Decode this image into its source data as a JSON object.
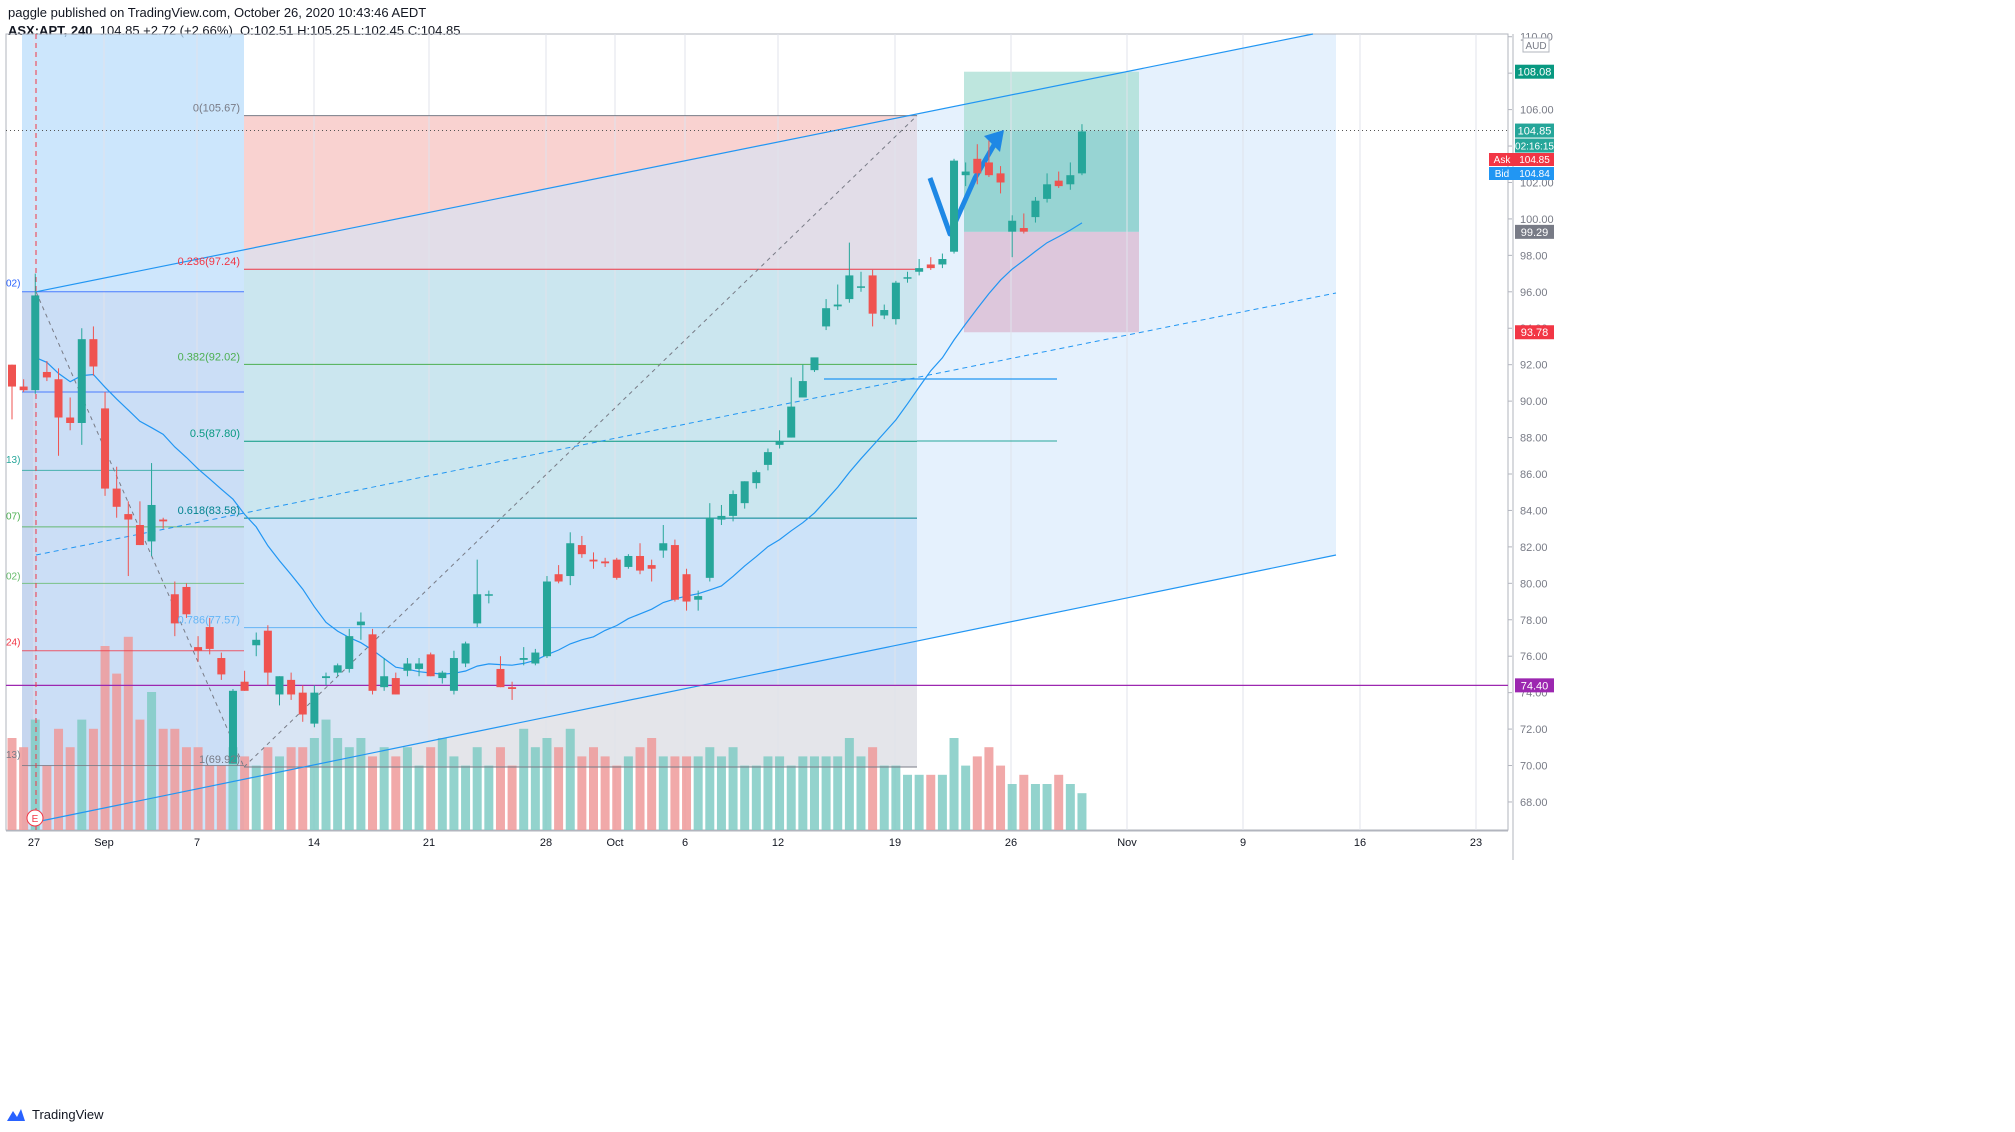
{
  "header": {
    "publisher_line": "paggle published on TradingView.com, October 26, 2020 10:43:46 AEDT",
    "symbol": "ASX:APT, 240",
    "change": "104.85  +2.72 (+2.66%)",
    "ohlc": "O:102.51  H:105.25  L:102.45  C:104.85"
  },
  "footer": {
    "brand": "TradingView"
  },
  "colors": {
    "up": "#26a69a",
    "down": "#ef5350",
    "ma": "#2196f3",
    "fib_bg": "#bbdefb",
    "accent_purple": "#9c27b0"
  },
  "chart_data": {
    "type": "candlestick",
    "currency": "AUD",
    "ylim": [
      66.5,
      110.5
    ],
    "y_ticks": [
      "68.00",
      "70.00",
      "72.00",
      "74.00",
      "76.00",
      "78.00",
      "80.00",
      "82.00",
      "84.00",
      "86.00",
      "88.00",
      "90.00",
      "92.00",
      "94.00",
      "96.00",
      "98.00",
      "100.00",
      "102.00",
      "104.00",
      "106.00",
      "108.00",
      "110.00"
    ],
    "x_tick_labels": [
      "27",
      "Sep",
      "7",
      "14",
      "21",
      "28",
      "Oct",
      "6",
      "12",
      "19",
      "26",
      "Nov",
      "9",
      "16",
      "23"
    ],
    "last_price": "104.85",
    "countdown": "02:16:15",
    "ask": {
      "label": "Ask",
      "value": "104.85"
    },
    "bid": {
      "label": "Bid",
      "value": "104.84"
    },
    "price_labels": [
      {
        "value": "108.08",
        "color": "#089981"
      },
      {
        "value": "99.29",
        "color": "#787b86"
      },
      {
        "value": "93.78",
        "color": "#f23645"
      },
      {
        "value": "74.40",
        "color": "#9c27b0"
      }
    ],
    "fib_levels": [
      {
        "label": "0(105.67)",
        "price": 105.67
      },
      {
        "label": "0.236(97.24)",
        "price": 97.24
      },
      {
        "label": "0.382(92.02)",
        "price": 92.02
      },
      {
        "label": "0.5(87.80)",
        "price": 87.8
      },
      {
        "label": "0.618(83.58)",
        "price": 83.58
      },
      {
        "label": "0.786(77.57)",
        "price": 77.57
      },
      {
        "label": "1(69.92)",
        "price": 69.92
      }
    ],
    "left_fib_labels": [
      "02)",
      "13)",
      "07)",
      "02)",
      "24)",
      "13)"
    ],
    "earnings_marker": "E",
    "candles": [
      [
        92,
        92,
        89,
        90.8
      ],
      [
        90.8,
        91.2,
        90.5,
        90.6
      ],
      [
        90.6,
        97,
        90.4,
        95.8
      ],
      [
        91.6,
        92.2,
        91.1,
        91.3
      ],
      [
        91.2,
        91.8,
        87,
        89.1
      ],
      [
        89.1,
        90.2,
        88.4,
        88.8
      ],
      [
        88.8,
        94,
        87.6,
        93.4
      ],
      [
        93.4,
        94.1,
        91.4,
        91.9
      ],
      [
        89.6,
        90.5,
        84.8,
        85.2
      ],
      [
        85.2,
        86.4,
        83.6,
        84.2
      ],
      [
        83.8,
        84.5,
        80.4,
        83.5
      ],
      [
        83.2,
        84.5,
        82.1,
        82.1
      ],
      [
        82.3,
        86.6,
        81.5,
        84.3
      ],
      [
        83.5,
        83.6,
        83,
        83.4
      ],
      [
        79.4,
        80.1,
        77.1,
        77.8
      ],
      [
        79.8,
        80,
        78.1,
        78.3
      ],
      [
        76.5,
        77.1,
        75.7,
        76.3
      ],
      [
        77.6,
        78.1,
        76.1,
        76.4
      ],
      [
        75.9,
        76.2,
        74.7,
        75
      ],
      [
        70.1,
        74.2,
        70.1,
        74.1
      ],
      [
        74.6,
        75.2,
        74.1,
        74.1
      ],
      [
        76.6,
        77.3,
        76,
        76.9
      ],
      [
        77.4,
        77.7,
        74.4,
        75.1
      ],
      [
        73.9,
        74.9,
        73.3,
        74.9
      ],
      [
        74.7,
        75.1,
        73.6,
        73.9
      ],
      [
        74,
        74.4,
        72.4,
        72.8
      ],
      [
        72.3,
        74.4,
        72.1,
        74
      ],
      [
        74.8,
        75.1,
        74.4,
        74.9
      ],
      [
        75.1,
        75.6,
        74.9,
        75.5
      ],
      [
        75.3,
        77.5,
        75.1,
        77.1
      ],
      [
        77.7,
        78.4,
        76.9,
        77.9
      ],
      [
        77.2,
        77.5,
        73.9,
        74.1
      ],
      [
        74.3,
        75.9,
        74.1,
        74.9
      ],
      [
        74.8,
        75.1,
        73.9,
        73.9
      ],
      [
        75.2,
        75.9,
        74.9,
        75.6
      ],
      [
        75.3,
        75.9,
        74.9,
        75.6
      ],
      [
        76.1,
        76.2,
        74.9,
        74.9
      ],
      [
        74.8,
        75.2,
        74.5,
        75.1
      ],
      [
        74.1,
        76.3,
        73.9,
        75.9
      ],
      [
        75.6,
        76.8,
        75.4,
        76.7
      ],
      [
        77.8,
        81.3,
        77.6,
        79.4
      ],
      [
        79.4,
        79.6,
        78.9,
        79.4
      ],
      [
        75.3,
        76,
        74.3,
        74.3
      ],
      [
        74.3,
        74.6,
        73.6,
        74.2
      ],
      [
        75.8,
        76.5,
        75.5,
        75.9
      ],
      [
        75.6,
        76.4,
        75.5,
        76.2
      ],
      [
        76,
        80.4,
        75.9,
        80.1
      ],
      [
        80.5,
        81,
        80,
        80.1
      ],
      [
        80.4,
        82.8,
        79.9,
        82.2
      ],
      [
        82.1,
        82.6,
        81.4,
        81.6
      ],
      [
        81.3,
        81.7,
        80.8,
        81.2
      ],
      [
        81.2,
        81.4,
        80.9,
        81.1
      ],
      [
        81.3,
        81.4,
        80.2,
        80.3
      ],
      [
        80.9,
        81.6,
        80.8,
        81.5
      ],
      [
        81.5,
        82.2,
        80.5,
        80.7
      ],
      [
        81,
        81.3,
        80.1,
        80.8
      ],
      [
        81.8,
        83.2,
        81.4,
        82.2
      ],
      [
        82.1,
        82.4,
        79,
        79.1
      ],
      [
        80.5,
        80.8,
        78.5,
        79
      ],
      [
        79.1,
        79.6,
        78.5,
        79.3
      ],
      [
        80.3,
        84.4,
        80.1,
        83.6
      ],
      [
        83.5,
        84.3,
        83.2,
        83.7
      ],
      [
        83.7,
        85.1,
        83.4,
        84.9
      ],
      [
        84.4,
        85.6,
        84.1,
        85.6
      ],
      [
        85.5,
        86.2,
        85.2,
        86.1
      ],
      [
        86.5,
        87.4,
        86.2,
        87.2
      ],
      [
        87.6,
        88.4,
        87.4,
        87.8
      ],
      [
        88,
        91.3,
        88,
        89.7
      ],
      [
        90.2,
        92,
        90.2,
        91.1
      ],
      [
        91.7,
        92.3,
        91.6,
        92.4
      ],
      [
        94.1,
        95.6,
        93.9,
        95.1
      ],
      [
        95.2,
        96.4,
        95,
        95.3
      ],
      [
        95.6,
        98.7,
        95.4,
        96.9
      ],
      [
        96.3,
        97.1,
        96,
        96.3
      ],
      [
        96.9,
        97.2,
        94.1,
        94.8
      ],
      [
        94.7,
        95.3,
        94.5,
        95
      ],
      [
        94.5,
        96.6,
        94.2,
        96.5
      ],
      [
        96.8,
        97.1,
        96.5,
        96.8
      ],
      [
        97.1,
        97.8,
        96.9,
        97.3
      ],
      [
        97.5,
        97.9,
        97.2,
        97.3
      ],
      [
        97.5,
        98.1,
        97.3,
        97.8
      ],
      [
        98.2,
        103.3,
        98.1,
        103.2
      ],
      [
        102.4,
        103.1,
        101.8,
        102.6
      ],
      [
        103.3,
        104.1,
        101.9,
        102.5
      ],
      [
        103.1,
        104.3,
        102.3,
        102.4
      ],
      [
        102.5,
        102.9,
        101.4,
        102
      ],
      [
        99.3,
        100.2,
        97.9,
        99.9
      ],
      [
        99.5,
        100.3,
        99.2,
        99.3
      ],
      [
        100.1,
        101.2,
        99.8,
        101
      ],
      [
        101.1,
        102.5,
        100.9,
        101.9
      ],
      [
        102.1,
        102.6,
        101.7,
        101.8
      ],
      [
        101.9,
        103.1,
        101.6,
        102.4
      ],
      [
        102.5,
        105.2,
        102.4,
        104.8
      ]
    ],
    "volume": [
      10,
      9,
      12,
      7,
      11,
      9,
      12,
      11,
      20,
      17,
      21,
      12,
      15,
      11,
      11,
      9,
      9,
      7,
      7,
      9,
      8,
      7,
      9,
      8,
      9,
      9,
      10,
      12,
      10,
      9,
      10,
      8,
      9,
      8,
      9,
      7,
      9,
      10,
      8,
      7,
      9,
      7,
      9,
      7,
      11,
      9,
      10,
      9,
      11,
      8,
      9,
      8,
      7,
      8,
      9,
      10,
      8,
      8,
      8,
      8,
      9,
      8,
      9,
      7,
      7,
      8,
      8,
      7,
      8,
      8,
      8,
      8,
      10,
      8,
      9,
      7,
      7,
      6,
      6,
      6,
      6,
      10,
      7,
      8,
      9,
      7,
      5,
      6,
      5,
      5,
      6,
      5,
      4
    ]
  }
}
